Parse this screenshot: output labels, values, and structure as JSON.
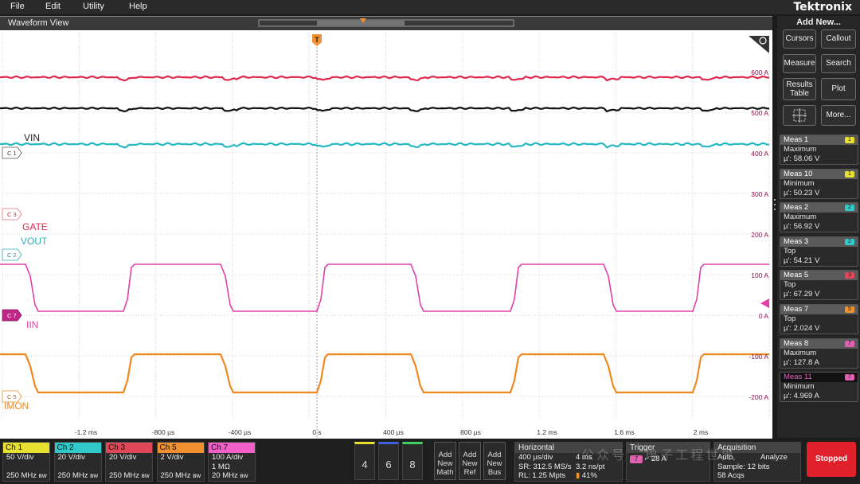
{
  "menu": {
    "items": [
      "File",
      "Edit",
      "Utility",
      "Help"
    ],
    "brand": "Tektronix"
  },
  "waveform_view": {
    "title": "Waveform View",
    "trigger_marker": "T",
    "x_ticks": [
      "-1.2 ms",
      "-800 µs",
      "-400 µs",
      "0 s",
      "400 µs",
      "800 µs",
      "1.2 ms",
      "1.6 ms",
      "2 ms"
    ],
    "y_ticks": [
      "600 A",
      "500 A",
      "400 A",
      "300 A",
      "200 A",
      "100 A",
      "0 A",
      "-100 A",
      "-200 A"
    ],
    "channel_markers": [
      "C 1",
      "C 3",
      "C 2",
      "C 7",
      "C 5"
    ],
    "labels": {
      "vin": "VIN",
      "gate": "GATE",
      "vout": "VOUT",
      "iin": "IIN",
      "imon": "IMON"
    }
  },
  "side_panel": {
    "add_new": "Add New...",
    "cursors": "Cursors",
    "callout": "Callout",
    "measure": "Measure",
    "search": "Search",
    "results_table_1": "Results",
    "results_table_2": "Table",
    "plot": "Plot",
    "more": "More...",
    "measurements": [
      {
        "name": "Meas 1",
        "type": "Maximum",
        "value": "µ': 58.06 V",
        "chip": "1",
        "chip_color": "#e8e030",
        "active": false
      },
      {
        "name": "Meas 10",
        "type": "Minimum",
        "value": "µ': 50.23 V",
        "chip": "1",
        "chip_color": "#e8e030",
        "active": false
      },
      {
        "name": "Meas 2",
        "type": "Maximum",
        "value": "µ': 56.92 V",
        "chip": "2",
        "chip_color": "#30c8c8",
        "active": false
      },
      {
        "name": "Meas 3",
        "type": "Top",
        "value": "µ': 54.21 V",
        "chip": "2",
        "chip_color": "#30c8c8",
        "active": false
      },
      {
        "name": "Meas 5",
        "type": "Top",
        "value": "µ': 67.29 V",
        "chip": "3",
        "chip_color": "#e04858",
        "active": false
      },
      {
        "name": "Meas 7",
        "type": "Top",
        "value": "µ': 2.024 V",
        "chip": "5",
        "chip_color": "#f09030",
        "active": false
      },
      {
        "name": "Meas 8",
        "type": "Maximum",
        "value": "µ': 127.8 A",
        "chip": "7",
        "chip_color": "#e060b0",
        "active": false
      },
      {
        "name": "Meas 11",
        "type": "Minimum",
        "value": "µ': 4.969 A",
        "chip": "7",
        "chip_color": "#e060b0",
        "active": true
      }
    ]
  },
  "channels": [
    {
      "name": "Ch 1",
      "l1": "50 V/div",
      "l2": "",
      "l3": "250 MHz",
      "color": "#e8e030"
    },
    {
      "name": "Ch 2",
      "l1": "20 V/div",
      "l2": "",
      "l3": "250 MHz",
      "color": "#30c8c8"
    },
    {
      "name": "Ch 3",
      "l1": "20 V/div",
      "l2": "",
      "l3": "250 MHz",
      "color": "#e04858"
    },
    {
      "name": "Ch 5",
      "l1": "2 V/div",
      "l2": "",
      "l3": "250 MHz",
      "color": "#f09030"
    },
    {
      "name": "Ch 7",
      "l1": "100 A/div",
      "l2": "1 MΩ",
      "l3": "20 MHz",
      "color": "#f060c8"
    }
  ],
  "bottom": {
    "num_buttons": [
      "4",
      "6",
      "8"
    ],
    "add_math": [
      "Add",
      "New",
      "Math"
    ],
    "add_ref": [
      "Add",
      "New",
      "Ref"
    ],
    "add_bus": [
      "Add",
      "New",
      "Bus"
    ],
    "horizontal": {
      "title": "Horizontal",
      "l1a": "400 µs/div",
      "l1b": "4 ms",
      "l2a": "SR: 312.5 MS/s",
      "l2b": "3.2 ns/pt",
      "l3a": "RL: 1.25 Mpts",
      "l3b": "41%"
    },
    "trigger": {
      "title": "Trigger",
      "chip": "7",
      "value": "28 A"
    },
    "acquisition": {
      "title": "Acquisition",
      "l1a": "Auto,",
      "l1b": "Analyze",
      "l2": "Sample: 12 bits",
      "l3": "58 Acqs"
    },
    "stopped": "Stopped",
    "watermark": "公众号 · 电子工程世界"
  }
}
